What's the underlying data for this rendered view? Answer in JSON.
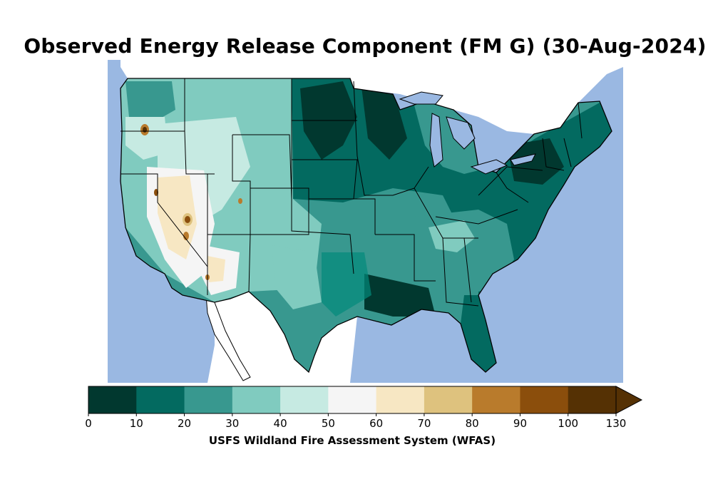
{
  "title": "Observed Energy Release Component (FM G) (30-Aug-2024)",
  "credit": "USFS Wildland Fire Assessment System (WFAS)",
  "colors": {
    "ocean": "#9ab8e2",
    "land_outside": "#ffffff",
    "border": "#000000"
  },
  "colorbar": {
    "ticks": [
      "0",
      "10",
      "20",
      "30",
      "40",
      "50",
      "60",
      "70",
      "80",
      "90",
      "100",
      "130"
    ],
    "colors": [
      "#01382f",
      "#036a60",
      "#38988f",
      "#80cbbf",
      "#c6eae2",
      "#f5f5f5",
      "#f7e7c3",
      "#dec27e",
      "#b97b2c",
      "#8b4e0c",
      "#553104"
    ],
    "extend": "max"
  }
}
